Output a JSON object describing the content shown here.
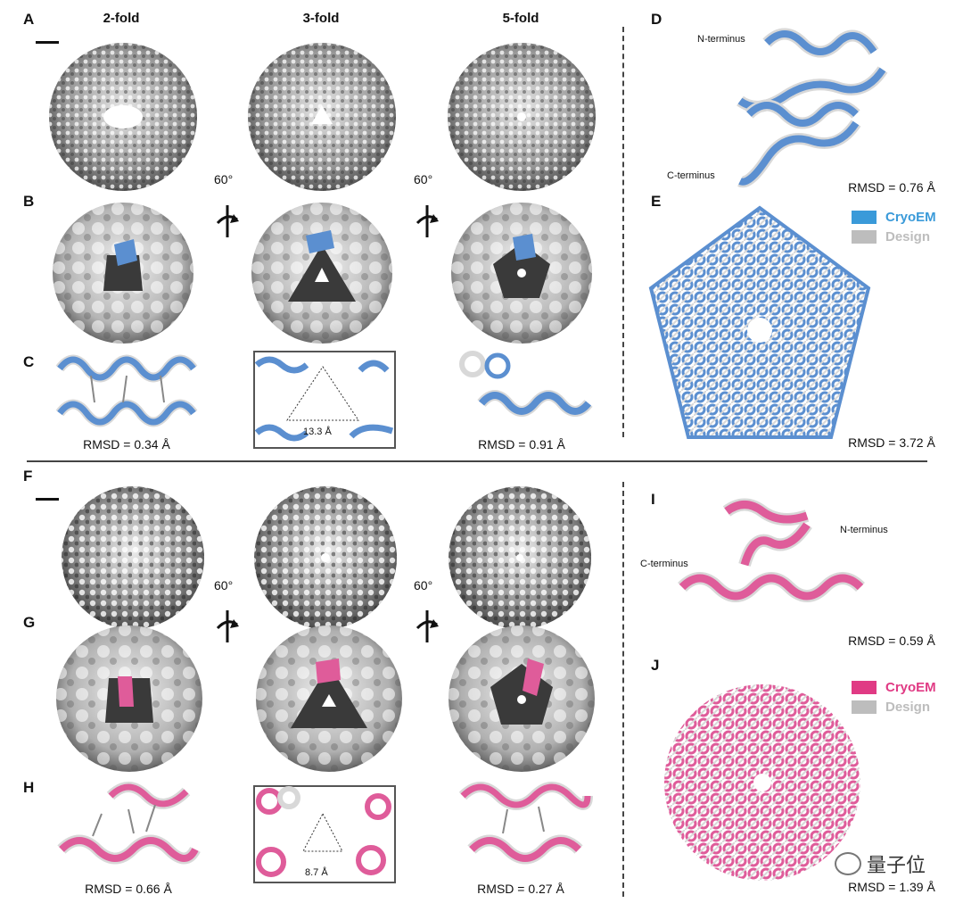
{
  "panel_labels": {
    "A": "A",
    "B": "B",
    "C": "C",
    "D": "D",
    "E": "E",
    "F": "F",
    "G": "G",
    "H": "H",
    "I": "I",
    "J": "J"
  },
  "column_headers": [
    "2-fold",
    "3-fold",
    "5-fold"
  ],
  "rotation_label": "60°",
  "top": {
    "rmsd_c": [
      "RMSD = 0.34 Å",
      "RMSD = 0.91 Å"
    ],
    "distance": "13.3 Å",
    "rmsd_d": "RMSD = 0.76 Å",
    "rmsd_e": "RMSD = 3.72 Å",
    "n_terminus": "N-terminus",
    "c_terminus": "C-terminus",
    "legend": [
      {
        "label": "CryoEM",
        "color": "#3a9ad9"
      },
      {
        "label": "Design",
        "color": "#bdbdbd"
      }
    ]
  },
  "bottom": {
    "rmsd_h": [
      "RMSD = 0.66 Å",
      "RMSD = 0.27 Å"
    ],
    "distance": "8.7 Å",
    "rmsd_i": "RMSD = 0.59 Å",
    "rmsd_j": "RMSD = 1.39 Å",
    "n_terminus": "N-terminus",
    "c_terminus": "C-terminus",
    "legend": [
      {
        "label": "CryoEM",
        "color": "#e03a84"
      },
      {
        "label": "Design",
        "color": "#bdbdbd"
      }
    ]
  },
  "colors": {
    "blue": "#5b8fd0",
    "pink": "#df5c9a",
    "grey": "#d8d8d8",
    "dark": "#3a3a3a"
  },
  "watermark": "量子位"
}
